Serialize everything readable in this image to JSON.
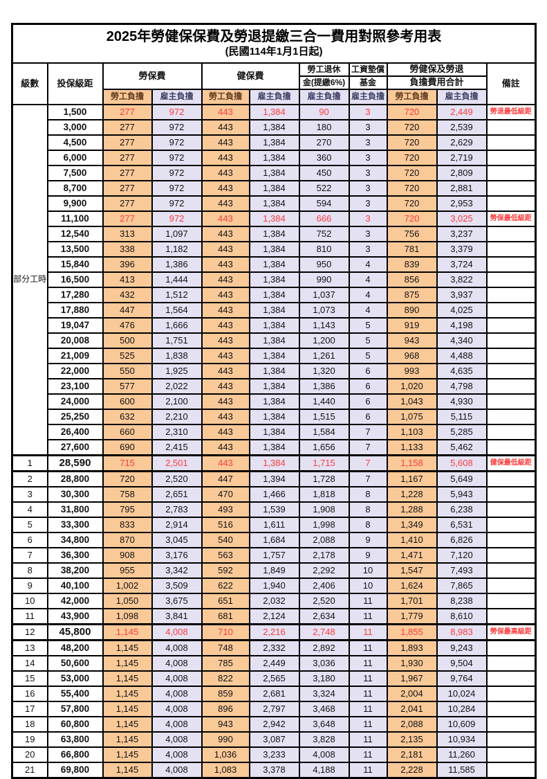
{
  "title": "2025年勞健保保費及勞退提繳三合一費用對照參考用表",
  "subtitle": "(民國114年1月1日起)",
  "header": {
    "level": "級數",
    "bracket": "投保級距",
    "labor_insurance": "勞保費",
    "health_insurance": "健保費",
    "pension_line1": "勞工退休",
    "pension_line2": "金(提繳6%)",
    "wage_fund_line1": "工資墊償",
    "wage_fund_line2": "基金",
    "total_line1": "勞健保及勞退",
    "total_line2": "負擔費用合計",
    "remark": "備註",
    "employee": "勞工負擔",
    "employer": "雇主負擔"
  },
  "part_time_label": "部分工時",
  "part_time_row_count": 23,
  "colors": {
    "employee_bg": "#FAC998",
    "employer_bg": "#E4E1F3",
    "highlight_text": "#FB3B3B",
    "border": "#000000"
  },
  "rows": [
    {
      "level": "",
      "bracket": "1,500",
      "values": [
        "277",
        "972",
        "443",
        "1,384",
        "90",
        "3",
        "720",
        "2,449"
      ],
      "remark": "勞退最低級距",
      "red": true,
      "thick": false
    },
    {
      "level": "",
      "bracket": "3,000",
      "values": [
        "277",
        "972",
        "443",
        "1,384",
        "180",
        "3",
        "720",
        "2,539"
      ],
      "remark": "",
      "red": false,
      "thick": false
    },
    {
      "level": "",
      "bracket": "4,500",
      "values": [
        "277",
        "972",
        "443",
        "1,384",
        "270",
        "3",
        "720",
        "2,629"
      ],
      "remark": "",
      "red": false,
      "thick": false
    },
    {
      "level": "",
      "bracket": "6,000",
      "values": [
        "277",
        "972",
        "443",
        "1,384",
        "360",
        "3",
        "720",
        "2,719"
      ],
      "remark": "",
      "red": false,
      "thick": false
    },
    {
      "level": "",
      "bracket": "7,500",
      "values": [
        "277",
        "972",
        "443",
        "1,384",
        "450",
        "3",
        "720",
        "2,809"
      ],
      "remark": "",
      "red": false,
      "thick": false
    },
    {
      "level": "",
      "bracket": "8,700",
      "values": [
        "277",
        "972",
        "443",
        "1,384",
        "522",
        "3",
        "720",
        "2,881"
      ],
      "remark": "",
      "red": false,
      "thick": false
    },
    {
      "level": "",
      "bracket": "9,900",
      "values": [
        "277",
        "972",
        "443",
        "1,384",
        "594",
        "3",
        "720",
        "2,953"
      ],
      "remark": "",
      "red": false,
      "thick": false
    },
    {
      "level": "",
      "bracket": "11,100",
      "values": [
        "277",
        "972",
        "443",
        "1,384",
        "666",
        "3",
        "720",
        "3,025"
      ],
      "remark": "勞保最低級距",
      "red": true,
      "thick": false
    },
    {
      "level": "",
      "bracket": "12,540",
      "values": [
        "313",
        "1,097",
        "443",
        "1,384",
        "752",
        "3",
        "756",
        "3,237"
      ],
      "remark": "",
      "red": false,
      "thick": false
    },
    {
      "level": "",
      "bracket": "13,500",
      "values": [
        "338",
        "1,182",
        "443",
        "1,384",
        "810",
        "3",
        "781",
        "3,379"
      ],
      "remark": "",
      "red": false,
      "thick": false
    },
    {
      "level": "",
      "bracket": "15,840",
      "values": [
        "396",
        "1,386",
        "443",
        "1,384",
        "950",
        "4",
        "839",
        "3,724"
      ],
      "remark": "",
      "red": false,
      "thick": false
    },
    {
      "level": "",
      "bracket": "16,500",
      "values": [
        "413",
        "1,444",
        "443",
        "1,384",
        "990",
        "4",
        "856",
        "3,822"
      ],
      "remark": "",
      "red": false,
      "thick": false
    },
    {
      "level": "",
      "bracket": "17,280",
      "values": [
        "432",
        "1,512",
        "443",
        "1,384",
        "1,037",
        "4",
        "875",
        "3,937"
      ],
      "remark": "",
      "red": false,
      "thick": false
    },
    {
      "level": "",
      "bracket": "17,880",
      "values": [
        "447",
        "1,564",
        "443",
        "1,384",
        "1,073",
        "4",
        "890",
        "4,025"
      ],
      "remark": "",
      "red": false,
      "thick": false
    },
    {
      "level": "",
      "bracket": "19,047",
      "values": [
        "476",
        "1,666",
        "443",
        "1,384",
        "1,143",
        "5",
        "919",
        "4,198"
      ],
      "remark": "",
      "red": false,
      "thick": false
    },
    {
      "level": "",
      "bracket": "20,008",
      "values": [
        "500",
        "1,751",
        "443",
        "1,384",
        "1,200",
        "5",
        "943",
        "4,340"
      ],
      "remark": "",
      "red": false,
      "thick": false
    },
    {
      "level": "",
      "bracket": "21,009",
      "values": [
        "525",
        "1,838",
        "443",
        "1,384",
        "1,261",
        "5",
        "968",
        "4,488"
      ],
      "remark": "",
      "red": false,
      "thick": false
    },
    {
      "level": "",
      "bracket": "22,000",
      "values": [
        "550",
        "1,925",
        "443",
        "1,384",
        "1,320",
        "6",
        "993",
        "4,635"
      ],
      "remark": "",
      "red": false,
      "thick": false
    },
    {
      "level": "",
      "bracket": "23,100",
      "values": [
        "577",
        "2,022",
        "443",
        "1,384",
        "1,386",
        "6",
        "1,020",
        "4,798"
      ],
      "remark": "",
      "red": false,
      "thick": false
    },
    {
      "level": "",
      "bracket": "24,000",
      "values": [
        "600",
        "2,100",
        "443",
        "1,384",
        "1,440",
        "6",
        "1,043",
        "4,930"
      ],
      "remark": "",
      "red": false,
      "thick": false
    },
    {
      "level": "",
      "bracket": "25,250",
      "values": [
        "632",
        "2,210",
        "443",
        "1,384",
        "1,515",
        "6",
        "1,075",
        "5,115"
      ],
      "remark": "",
      "red": false,
      "thick": false
    },
    {
      "level": "",
      "bracket": "26,400",
      "values": [
        "660",
        "2,310",
        "443",
        "1,384",
        "1,584",
        "7",
        "1,103",
        "5,285"
      ],
      "remark": "",
      "red": false,
      "thick": false
    },
    {
      "level": "",
      "bracket": "27,600",
      "values": [
        "690",
        "2,415",
        "443",
        "1,384",
        "1,656",
        "7",
        "1,133",
        "5,462"
      ],
      "remark": "",
      "red": false,
      "thick": false
    },
    {
      "level": "1",
      "bracket": "28,590",
      "values": [
        "715",
        "2,501",
        "443",
        "1,384",
        "1,715",
        "7",
        "1,158",
        "5,608"
      ],
      "remark": "健保最低級距",
      "red": true,
      "thick": true
    },
    {
      "level": "2",
      "bracket": "28,800",
      "values": [
        "720",
        "2,520",
        "447",
        "1,394",
        "1,728",
        "7",
        "1,167",
        "5,649"
      ],
      "remark": "",
      "red": false,
      "thick": false
    },
    {
      "level": "3",
      "bracket": "30,300",
      "values": [
        "758",
        "2,651",
        "470",
        "1,466",
        "1,818",
        "8",
        "1,228",
        "5,943"
      ],
      "remark": "",
      "red": false,
      "thick": false
    },
    {
      "level": "4",
      "bracket": "31,800",
      "values": [
        "795",
        "2,783",
        "493",
        "1,539",
        "1,908",
        "8",
        "1,288",
        "6,238"
      ],
      "remark": "",
      "red": false,
      "thick": false
    },
    {
      "level": "5",
      "bracket": "33,300",
      "values": [
        "833",
        "2,914",
        "516",
        "1,611",
        "1,998",
        "8",
        "1,349",
        "6,531"
      ],
      "remark": "",
      "red": false,
      "thick": false
    },
    {
      "level": "6",
      "bracket": "34,800",
      "values": [
        "870",
        "3,045",
        "540",
        "1,684",
        "2,088",
        "9",
        "1,410",
        "6,826"
      ],
      "remark": "",
      "red": false,
      "thick": false
    },
    {
      "level": "7",
      "bracket": "36,300",
      "values": [
        "908",
        "3,176",
        "563",
        "1,757",
        "2,178",
        "9",
        "1,471",
        "7,120"
      ],
      "remark": "",
      "red": false,
      "thick": false
    },
    {
      "level": "8",
      "bracket": "38,200",
      "values": [
        "955",
        "3,342",
        "592",
        "1,849",
        "2,292",
        "10",
        "1,547",
        "7,493"
      ],
      "remark": "",
      "red": false,
      "thick": false
    },
    {
      "level": "9",
      "bracket": "40,100",
      "values": [
        "1,002",
        "3,509",
        "622",
        "1,940",
        "2,406",
        "10",
        "1,624",
        "7,865"
      ],
      "remark": "",
      "red": false,
      "thick": false
    },
    {
      "level": "10",
      "bracket": "42,000",
      "values": [
        "1,050",
        "3,675",
        "651",
        "2,032",
        "2,520",
        "11",
        "1,701",
        "8,238"
      ],
      "remark": "",
      "red": false,
      "thick": false
    },
    {
      "level": "11",
      "bracket": "43,900",
      "values": [
        "1,098",
        "3,841",
        "681",
        "2,124",
        "2,634",
        "11",
        "1,779",
        "8,610"
      ],
      "remark": "",
      "red": false,
      "thick": false
    },
    {
      "level": "12",
      "bracket": "45,800",
      "values": [
        "1,145",
        "4,008",
        "710",
        "2,216",
        "2,748",
        "11",
        "1,855",
        "8,983"
      ],
      "remark": "勞保最高級距",
      "red": true,
      "thick": true
    },
    {
      "level": "13",
      "bracket": "48,200",
      "values": [
        "1,145",
        "4,008",
        "748",
        "2,332",
        "2,892",
        "11",
        "1,893",
        "9,243"
      ],
      "remark": "",
      "red": false,
      "thick": false
    },
    {
      "level": "14",
      "bracket": "50,600",
      "values": [
        "1,145",
        "4,008",
        "785",
        "2,449",
        "3,036",
        "11",
        "1,930",
        "9,504"
      ],
      "remark": "",
      "red": false,
      "thick": false
    },
    {
      "level": "15",
      "bracket": "53,000",
      "values": [
        "1,145",
        "4,008",
        "822",
        "2,565",
        "3,180",
        "11",
        "1,967",
        "9,764"
      ],
      "remark": "",
      "red": false,
      "thick": false
    },
    {
      "level": "16",
      "bracket": "55,400",
      "values": [
        "1,145",
        "4,008",
        "859",
        "2,681",
        "3,324",
        "11",
        "2,004",
        "10,024"
      ],
      "remark": "",
      "red": false,
      "thick": false
    },
    {
      "level": "17",
      "bracket": "57,800",
      "values": [
        "1,145",
        "4,008",
        "896",
        "2,797",
        "3,468",
        "11",
        "2,041",
        "10,284"
      ],
      "remark": "",
      "red": false,
      "thick": false
    },
    {
      "level": "18",
      "bracket": "60,800",
      "values": [
        "1,145",
        "4,008",
        "943",
        "2,942",
        "3,648",
        "11",
        "2,088",
        "10,609"
      ],
      "remark": "",
      "red": false,
      "thick": false
    },
    {
      "level": "19",
      "bracket": "63,800",
      "values": [
        "1,145",
        "4,008",
        "990",
        "3,087",
        "3,828",
        "11",
        "2,135",
        "10,934"
      ],
      "remark": "",
      "red": false,
      "thick": false
    },
    {
      "level": "20",
      "bracket": "66,800",
      "values": [
        "1,145",
        "4,008",
        "1,036",
        "3,233",
        "4,008",
        "11",
        "2,181",
        "11,260"
      ],
      "remark": "",
      "red": false,
      "thick": false
    },
    {
      "level": "21",
      "bracket": "69,800",
      "values": [
        "1,145",
        "4,008",
        "1,083",
        "3,378",
        "4,188",
        "11",
        "2,228",
        "11,585"
      ],
      "remark": "",
      "red": false,
      "thick": false
    }
  ]
}
